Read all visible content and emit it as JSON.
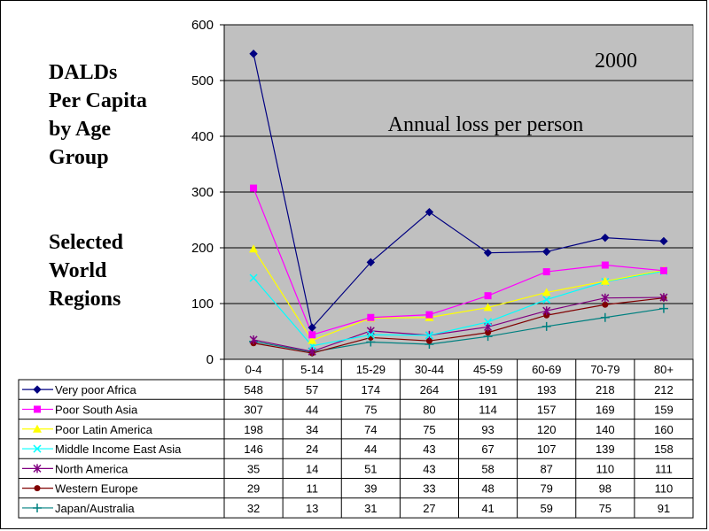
{
  "side_title": [
    "DALDs",
    "Per Capita",
    "by Age",
    "Group"
  ],
  "side_subtitle": [
    "Selected",
    "World",
    "Regions"
  ],
  "chart_data": {
    "type": "line",
    "title": "",
    "annotations": [
      "2000",
      "Annual loss per person"
    ],
    "xlabel": "",
    "ylabel": "",
    "ylim": [
      0,
      600
    ],
    "yticks": [
      0,
      100,
      200,
      300,
      400,
      500,
      600
    ],
    "grid": true,
    "legend_placement": "data-table-left",
    "plot_background": "#c0c0c0",
    "categories": [
      "0-4",
      "5-14",
      "15-29",
      "30-44",
      "45-59",
      "60-69",
      "70-79",
      "80+"
    ],
    "series": [
      {
        "name": "Very poor Africa",
        "color": "#000080",
        "marker": "diamond",
        "values": [
          548,
          57,
          174,
          264,
          191,
          193,
          218,
          212
        ]
      },
      {
        "name": "Poor South Asia",
        "color": "#ff00ff",
        "marker": "square",
        "values": [
          307,
          44,
          75,
          80,
          114,
          157,
          169,
          159
        ]
      },
      {
        "name": "Poor Latin America",
        "color": "#ffff00",
        "marker": "triangle",
        "values": [
          198,
          34,
          74,
          75,
          93,
          120,
          140,
          160
        ]
      },
      {
        "name": "Middle Income East Asia",
        "color": "#00ffff",
        "marker": "x",
        "values": [
          146,
          24,
          44,
          43,
          67,
          107,
          139,
          158
        ]
      },
      {
        "name": "North America",
        "color": "#800080",
        "marker": "star",
        "values": [
          35,
          14,
          51,
          43,
          58,
          87,
          110,
          111
        ]
      },
      {
        "name": "Western Europe",
        "color": "#800000",
        "marker": "circle",
        "values": [
          29,
          11,
          39,
          33,
          48,
          79,
          98,
          110
        ]
      },
      {
        "name": "Japan/Australia",
        "color": "#008080",
        "marker": "plus",
        "values": [
          32,
          13,
          31,
          27,
          41,
          59,
          75,
          91
        ]
      }
    ]
  }
}
